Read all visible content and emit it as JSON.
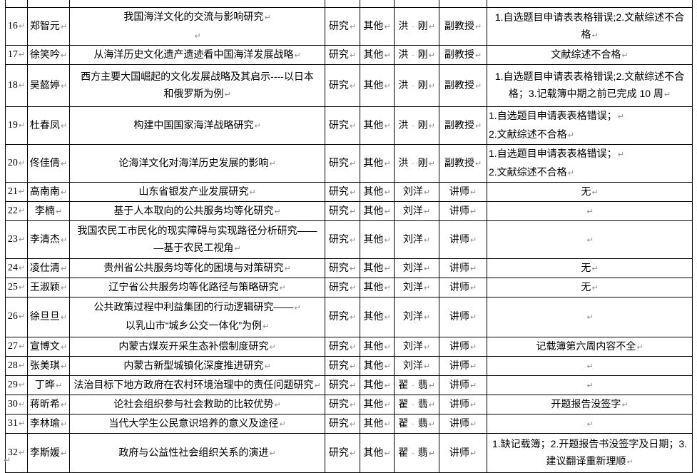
{
  "marks": {
    "paragraph": "↵",
    "end_of_row": "¤",
    "space_dot": "·",
    "below_table": "↵"
  },
  "table": {
    "rows": [
      {
        "partial": true,
        "no": "",
        "name": "",
        "title": "",
        "type": "",
        "category": "",
        "advisor": "",
        "rank": "",
        "comment": ""
      },
      {
        "no": "16↵",
        "name": "郑智元↵",
        "title": "我国海洋文化的交流与影响研究↵\n↵",
        "type": "研究↵",
        "category": "其他↵",
        "advisor": "洪·刚↵",
        "rank": "副教授↵",
        "comment": "1.自选题目申请表表格错误;2.文献综述不合\n格↵",
        "comment_align": "center"
      },
      {
        "no": "17↵",
        "name": "徐笑吟↵",
        "title": "从海洋历史文化遗产遗迹看中国海洋发展战略↵",
        "type": "研究↵",
        "category": "其他↵",
        "advisor": "洪·刚↵",
        "rank": "副教授↵",
        "comment": "文献综述不合格↵",
        "comment_align": "center"
      },
      {
        "no": "18↵",
        "name": "吴懿婷↵",
        "title": "西方主要大国崛起的文化发展战略及其启示----以日本\n和俄罗斯为例↵",
        "type": "研究↵",
        "category": "其他↵",
        "advisor": "洪·刚↵",
        "rank": "副教授↵",
        "comment": "1.自选题目申请表表格错误;2.文献综述不合\n格；3.记载簿中期之前已完成 10 周↵",
        "comment_align": "center"
      },
      {
        "no": "19↵",
        "name": "杜春凤↵",
        "title": "构建中国国家海洋战略研究↵",
        "type": "研究↵",
        "category": "其他↵",
        "advisor": "洪·刚↵",
        "rank": "副教授↵",
        "comment": "1.自选题目申请表表格错误；↵\n2.文献综述不合格↵",
        "comment_align": "left"
      },
      {
        "no": "20↵",
        "name": "佟佳倩↵",
        "title": "论海洋文化对海洋历史发展的影响↵",
        "type": "研究↵",
        "category": "其他↵",
        "advisor": "洪·刚↵",
        "rank": "副教授↵",
        "comment": "1.自选题目申请表表格错误；↵\n2.文献综述不合格↵",
        "comment_align": "left"
      },
      {
        "no": "21↵",
        "name": "高南南↵",
        "title": "山东省银发产业发展研究↵",
        "type": "研究↵",
        "category": "其他↵",
        "advisor": "刘洋↵",
        "rank": "讲师↵",
        "comment": "无↵",
        "comment_align": "center"
      },
      {
        "no": "22↵",
        "name": "李楠↵",
        "title": "基于人本取向的公共服务均等化研究↵",
        "type": "研究↵",
        "category": "其他↵",
        "advisor": "刘洋↵",
        "rank": "讲师↵",
        "comment": "↵",
        "comment_align": "center"
      },
      {
        "no": "23↵",
        "name": "李清杰↵",
        "title": "我国农民工市民化的现实障碍与实现路径分析研究——\n—基于农民工视角↵",
        "type": "研究↵",
        "category": "其他↵",
        "advisor": "刘洋↵",
        "rank": "讲师↵",
        "comment": "↵",
        "comment_align": "center"
      },
      {
        "no": "24↵",
        "name": "凌仕清↵",
        "title": "贵州省公共服务均等化的困境与对策研究↵",
        "type": "研究↵",
        "category": "其他↵",
        "advisor": "刘洋↵",
        "rank": "讲师↵",
        "comment": "无↵",
        "comment_align": "center"
      },
      {
        "no": "25↵",
        "name": "王淑颖↵",
        "title": "辽宁省公共服务均等化路径与策略研究↵",
        "type": "研究↵",
        "category": "其他↵",
        "advisor": "刘洋↵",
        "rank": "讲师↵",
        "comment": "无↵",
        "comment_align": "center"
      },
      {
        "no": "26↵",
        "name": "徐旦旦↵",
        "title": "公共政策过程中利益集团的行动逻辑研究——↵\n以乳山市“城乡公交一体化”为例↵",
        "type": "研究↵",
        "category": "其他↵",
        "advisor": "刘洋↵",
        "rank": "讲师↵",
        "comment": "↵",
        "comment_align": "center"
      },
      {
        "no": "27↵",
        "name": "宣博文↵",
        "title": "内蒙古煤炭开采生态补偿制度研究↵",
        "type": "研究↵",
        "category": "其他↵",
        "advisor": "刘洋↵",
        "rank": "讲师↵",
        "comment": "记载簿第六周内容不全↵",
        "comment_align": "center"
      },
      {
        "no": "28↵",
        "name": "张美琪↵",
        "title": "内蒙古新型城镇化深度推进研究↵",
        "type": "研究↵",
        "category": "其他↵",
        "advisor": "刘洋↵",
        "rank": "讲师↵",
        "comment": "↵",
        "comment_align": "center"
      },
      {
        "no": "29↵",
        "name": "丁晔↵",
        "title": "法治目标下地方政府在农村环境治理中的责任问题研究↵",
        "type": "研究↵",
        "category": "其他↵",
        "advisor": "翟·翡↵",
        "rank": "讲师↵",
        "comment": "↵",
        "comment_align": "center"
      },
      {
        "no": "30↵",
        "name": "蒋昕希↵",
        "title": "论社会组织参与社会救助的比较优势↵",
        "type": "研究↵",
        "category": "其他↵",
        "advisor": "翟·翡↵",
        "rank": "讲师↵",
        "comment": "开题报告没签字↵",
        "comment_align": "center"
      },
      {
        "no": "31↵",
        "name": "李林瑜↵",
        "title": "当代大学生公民意识培养的意义及途径↵",
        "type": "研究↵",
        "category": "其他↵",
        "advisor": "翟·翡↵",
        "rank": "讲师↵",
        "comment": "↵",
        "comment_align": "center"
      },
      {
        "no": "32↵",
        "name": "李斯媛↵",
        "title": "政府与公益性社会组织关系的演进↵",
        "type": "研究↵",
        "category": "其他↵",
        "advisor": "翟·翡↵",
        "rank": "讲师↵",
        "comment": "1.缺记载簿；2.开题报告书没签字及日期；3.\n建议翻译重新理顺↵",
        "comment_align": "center"
      }
    ]
  }
}
